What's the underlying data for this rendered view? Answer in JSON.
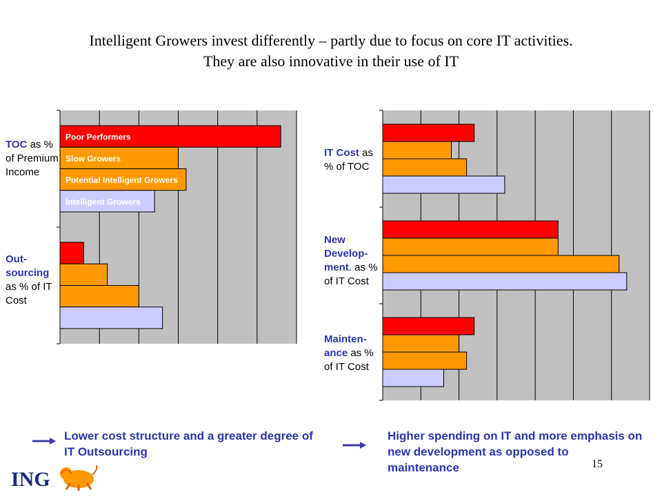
{
  "title": {
    "line1": "Intelligent Growers invest differently – partly due to focus on core IT activities.",
    "line2": "They are also innovative in their use of IT"
  },
  "legend": [
    "Poor Performers",
    "Slow Growers",
    "Potential Intelligent Growers",
    "Intelligent Growers"
  ],
  "colors": {
    "Poor Performers": "#ff0000",
    "Slow Growers": "#ff9900",
    "Potential Intelligent Growers": "#ff9900",
    "Intelligent Growers": "#ccccff",
    "plot_background": "#c0c0c0",
    "highlight_text": "#2b35a8"
  },
  "left_chart": {
    "labels": {
      "toc_hl": "TOC",
      "toc_rest": " as % of Premium Income",
      "out_hl": "Out-sourcing",
      "out_rest": " as % of IT Cost"
    }
  },
  "right_chart": {
    "labels": {
      "itcost_hl": "IT Cost",
      "itcost_rest": " as % of TOC",
      "newdev_hl": "New Develop-ment",
      "newdev_rest": ". as % of IT Cost",
      "maint_hl": "Mainten-ance",
      "maint_rest": " as % of IT Cost"
    }
  },
  "chart_data": [
    {
      "type": "bar",
      "orientation": "horizontal",
      "categories": [
        "TOC as % of Premium Income",
        "Out-sourcing as % of IT Cost"
      ],
      "series": [
        {
          "name": "Poor Performers",
          "values": [
            5.6,
            0.6
          ]
        },
        {
          "name": "Slow Growers",
          "values": [
            3.0,
            1.2
          ]
        },
        {
          "name": "Potential Intelligent Growers",
          "values": [
            3.2,
            2.0
          ]
        },
        {
          "name": "Intelligent Growers",
          "values": [
            2.4,
            2.6
          ]
        }
      ],
      "xlim": [
        0,
        6
      ],
      "grid": true,
      "legend": "inside bars"
    },
    {
      "type": "bar",
      "orientation": "horizontal",
      "categories": [
        "IT Cost as % of TOC",
        "New Develop-ment. as % of IT Cost",
        "Mainten-ance as % of IT Cost"
      ],
      "series": [
        {
          "name": "Poor Performers",
          "values": [
            2.4,
            4.6,
            2.4
          ]
        },
        {
          "name": "Slow Growers",
          "values": [
            1.8,
            4.6,
            2.0
          ]
        },
        {
          "name": "Potential Intelligent Growers",
          "values": [
            2.2,
            6.2,
            2.2
          ]
        },
        {
          "name": "Intelligent Growers",
          "values": [
            3.2,
            6.4,
            1.6
          ]
        }
      ],
      "xlim": [
        0,
        7
      ],
      "grid": true
    }
  ],
  "conclusions": {
    "left": "Lower cost structure and a greater degree of IT Outsourcing",
    "right": "Higher spending on IT and more emphasis on new development as opposed to maintenance"
  },
  "page_number": "15",
  "logo_text": "ING"
}
